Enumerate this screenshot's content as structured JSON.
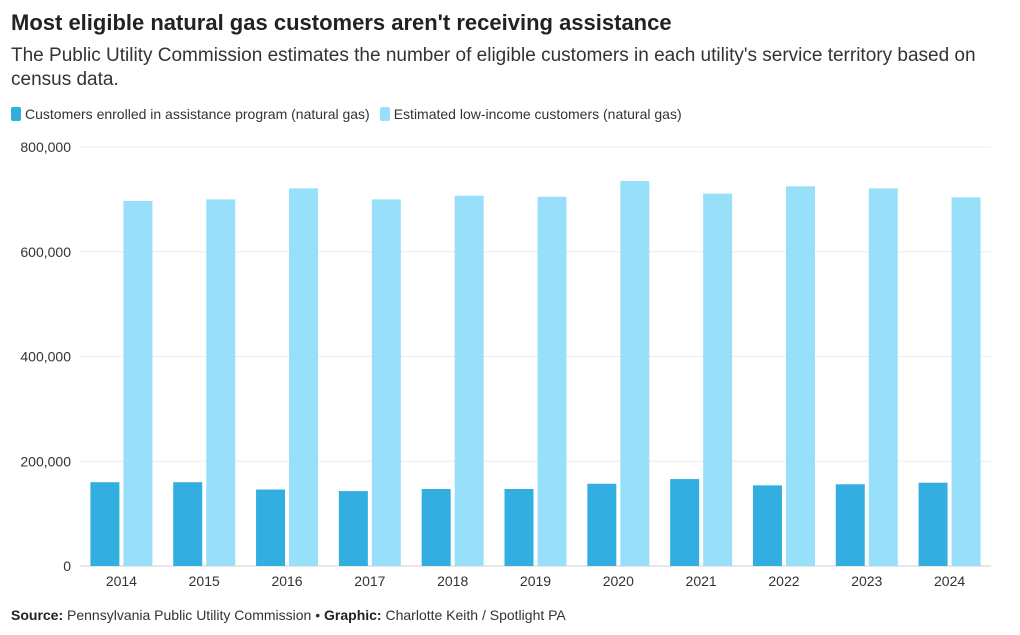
{
  "chart_data": {
    "type": "bar",
    "title": "Most eligible natural gas customers aren't receiving assistance",
    "subtitle": "The Public Utility Commission estimates the number of eligible customers in each utility's service territory based on census data.",
    "xlabel": "",
    "ylabel": "",
    "ylim": [
      0,
      800000
    ],
    "yticks": [
      0,
      200000,
      400000,
      600000,
      800000
    ],
    "ytick_labels": [
      "0",
      "200,000",
      "400,000",
      "600,000",
      "800,000"
    ],
    "grid": true,
    "legend_position": "top-left",
    "categories": [
      "2014",
      "2015",
      "2016",
      "2017",
      "2018",
      "2019",
      "2020",
      "2021",
      "2022",
      "2023",
      "2024"
    ],
    "series": [
      {
        "name": "Customers enrolled in assistance program (natural gas)",
        "color": "#33aee0",
        "values": [
          160000,
          160000,
          146000,
          143000,
          147000,
          147000,
          157000,
          166000,
          154000,
          156000,
          159000
        ]
      },
      {
        "name": "Estimated low-income customers (natural gas)",
        "color": "#98e0fa",
        "values": [
          697000,
          700000,
          721000,
          700000,
          707000,
          705000,
          735000,
          711000,
          725000,
          721000,
          704000
        ]
      }
    ]
  },
  "footer": {
    "source_label": "Source:",
    "source_text": "Pennsylvania Public Utility Commission",
    "separator": " • ",
    "graphic_label": "Graphic:",
    "graphic_text": "Charlotte Keith / Spotlight PA"
  }
}
